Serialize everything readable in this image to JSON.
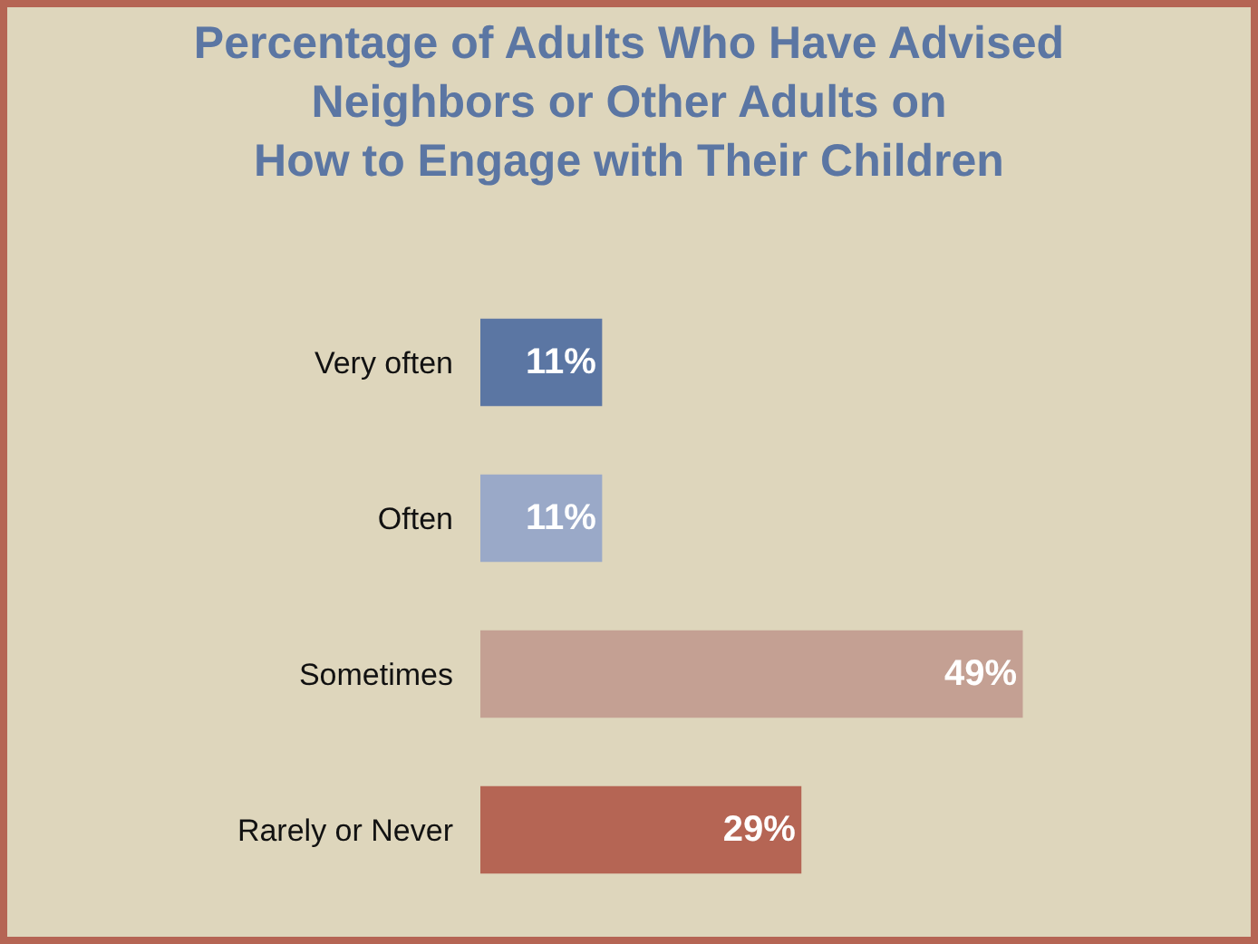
{
  "chart_data": {
    "type": "bar",
    "orientation": "horizontal",
    "title": "Percentage of Adults Who Have Advised\nNeighbors or Other Adults on\nHow to Engage with Their Children",
    "categories": [
      "Very often",
      "Often",
      "Sometimes",
      "Rarely or Never"
    ],
    "values": [
      11,
      11,
      49,
      29
    ],
    "value_labels": [
      "11%",
      "11%",
      "49%",
      "29%"
    ],
    "colors": [
      "#5b76a3",
      "#9aa9c8",
      "#c4a093",
      "#b56554"
    ],
    "legend": false,
    "grid": false
  }
}
